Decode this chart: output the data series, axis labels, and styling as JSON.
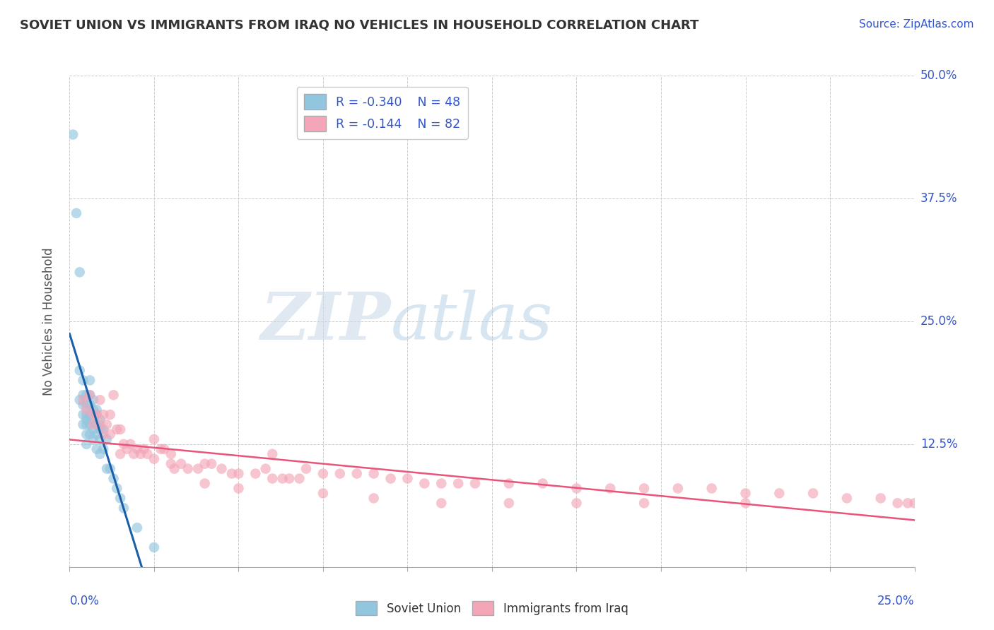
{
  "title": "SOVIET UNION VS IMMIGRANTS FROM IRAQ NO VEHICLES IN HOUSEHOLD CORRELATION CHART",
  "source": "Source: ZipAtlas.com",
  "ylabel": "No Vehicles in Household",
  "xlim": [
    0.0,
    0.25
  ],
  "ylim": [
    0.0,
    0.5
  ],
  "xtick_labels": [
    "0.0%",
    "25.0%"
  ],
  "ytick_labels": [
    "",
    "12.5%",
    "25.0%",
    "37.5%",
    "50.0%"
  ],
  "legend_r1": "R = -0.340",
  "legend_n1": "N = 48",
  "legend_r2": "R = -0.144",
  "legend_n2": "N = 82",
  "color_soviet": "#92c5de",
  "color_iraq": "#f4a6b8",
  "color_soviet_line": "#1a5fa8",
  "color_iraq_line": "#e8547a",
  "background_color": "#ffffff",
  "grid_color": "#cccccc",
  "soviet_x": [
    0.001,
    0.002,
    0.003,
    0.003,
    0.003,
    0.004,
    0.004,
    0.004,
    0.004,
    0.004,
    0.005,
    0.005,
    0.005,
    0.005,
    0.005,
    0.005,
    0.005,
    0.006,
    0.006,
    0.006,
    0.006,
    0.006,
    0.006,
    0.007,
    0.007,
    0.007,
    0.007,
    0.007,
    0.008,
    0.008,
    0.008,
    0.008,
    0.008,
    0.009,
    0.009,
    0.009,
    0.009,
    0.01,
    0.01,
    0.011,
    0.011,
    0.012,
    0.013,
    0.014,
    0.015,
    0.016,
    0.02,
    0.025
  ],
  "soviet_y": [
    0.44,
    0.36,
    0.3,
    0.2,
    0.17,
    0.19,
    0.175,
    0.165,
    0.155,
    0.145,
    0.175,
    0.165,
    0.155,
    0.15,
    0.145,
    0.135,
    0.125,
    0.19,
    0.175,
    0.165,
    0.155,
    0.145,
    0.135,
    0.17,
    0.16,
    0.15,
    0.14,
    0.13,
    0.16,
    0.155,
    0.145,
    0.135,
    0.12,
    0.15,
    0.14,
    0.13,
    0.115,
    0.14,
    0.12,
    0.13,
    0.1,
    0.1,
    0.09,
    0.08,
    0.07,
    0.06,
    0.04,
    0.02
  ],
  "iraq_x": [
    0.004,
    0.005,
    0.006,
    0.007,
    0.007,
    0.008,
    0.009,
    0.009,
    0.01,
    0.01,
    0.011,
    0.012,
    0.012,
    0.013,
    0.014,
    0.015,
    0.015,
    0.016,
    0.017,
    0.018,
    0.019,
    0.02,
    0.021,
    0.022,
    0.023,
    0.025,
    0.027,
    0.028,
    0.03,
    0.031,
    0.033,
    0.035,
    0.038,
    0.04,
    0.042,
    0.045,
    0.048,
    0.05,
    0.055,
    0.058,
    0.06,
    0.063,
    0.065,
    0.068,
    0.07,
    0.075,
    0.08,
    0.085,
    0.09,
    0.095,
    0.1,
    0.105,
    0.11,
    0.115,
    0.12,
    0.13,
    0.14,
    0.15,
    0.16,
    0.17,
    0.18,
    0.19,
    0.2,
    0.21,
    0.22,
    0.23,
    0.24,
    0.245,
    0.248,
    0.25,
    0.025,
    0.03,
    0.04,
    0.05,
    0.06,
    0.075,
    0.09,
    0.11,
    0.13,
    0.15,
    0.17,
    0.2
  ],
  "iraq_y": [
    0.17,
    0.16,
    0.175,
    0.155,
    0.145,
    0.155,
    0.17,
    0.145,
    0.155,
    0.135,
    0.145,
    0.155,
    0.135,
    0.175,
    0.14,
    0.14,
    0.115,
    0.125,
    0.12,
    0.125,
    0.115,
    0.12,
    0.115,
    0.12,
    0.115,
    0.11,
    0.12,
    0.12,
    0.115,
    0.1,
    0.105,
    0.1,
    0.1,
    0.105,
    0.105,
    0.1,
    0.095,
    0.095,
    0.095,
    0.1,
    0.115,
    0.09,
    0.09,
    0.09,
    0.1,
    0.095,
    0.095,
    0.095,
    0.095,
    0.09,
    0.09,
    0.085,
    0.085,
    0.085,
    0.085,
    0.085,
    0.085,
    0.08,
    0.08,
    0.08,
    0.08,
    0.08,
    0.075,
    0.075,
    0.075,
    0.07,
    0.07,
    0.065,
    0.065,
    0.065,
    0.13,
    0.105,
    0.085,
    0.08,
    0.09,
    0.075,
    0.07,
    0.065,
    0.065,
    0.065,
    0.065,
    0.065
  ]
}
